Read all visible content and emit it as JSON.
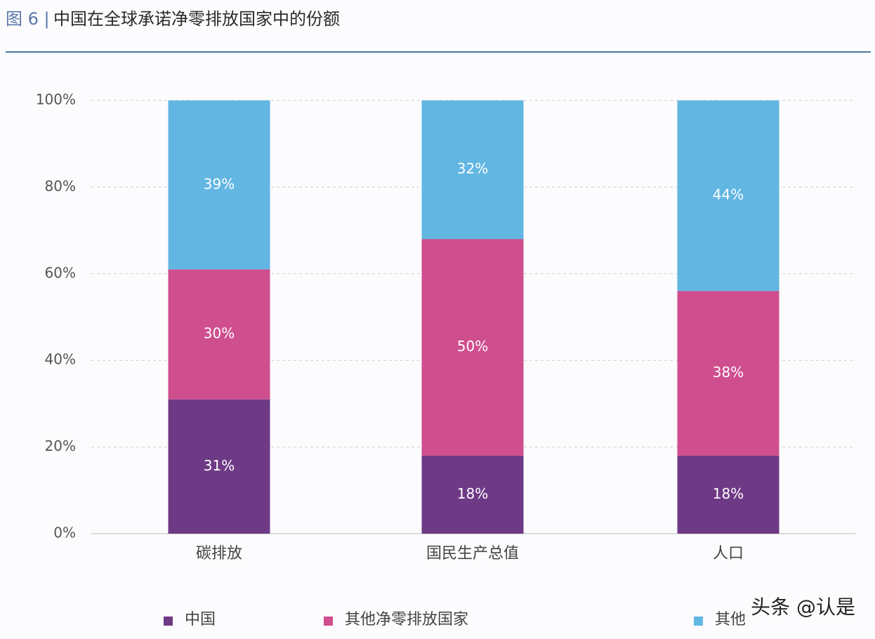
{
  "chart_data": {
    "type": "stacked_bar",
    "title_prefix": "图 6 |",
    "title": "中国在全球承诺净零排放国家中的份额",
    "categories": [
      "碳排放",
      "国民生产总值",
      "人口"
    ],
    "series": [
      {
        "name": "中国",
        "color": "#6e3a86",
        "values": [
          31,
          18,
          18
        ],
        "value_labels": [
          "31%",
          "18%",
          "18%"
        ]
      },
      {
        "name": "其他净零排放国家",
        "color": "#cf4e8e",
        "values": [
          30,
          50,
          38
        ],
        "value_labels": [
          "30%",
          "50%",
          "38%"
        ]
      },
      {
        "name": "其他",
        "color": "#62b6e2",
        "values": [
          39,
          32,
          44
        ],
        "value_labels": [
          "39%",
          "32%",
          "44%"
        ]
      }
    ],
    "ylim": [
      0,
      100
    ],
    "yticks": [
      {
        "value": 0,
        "label": "0%"
      },
      {
        "value": 20,
        "label": "20%"
      },
      {
        "value": 40,
        "label": "40%"
      },
      {
        "value": 60,
        "label": "60%"
      },
      {
        "value": 80,
        "label": "80%"
      },
      {
        "value": 100,
        "label": "100%"
      }
    ],
    "grid": true,
    "legend": "bottom",
    "watermark": "头条 @认是"
  }
}
